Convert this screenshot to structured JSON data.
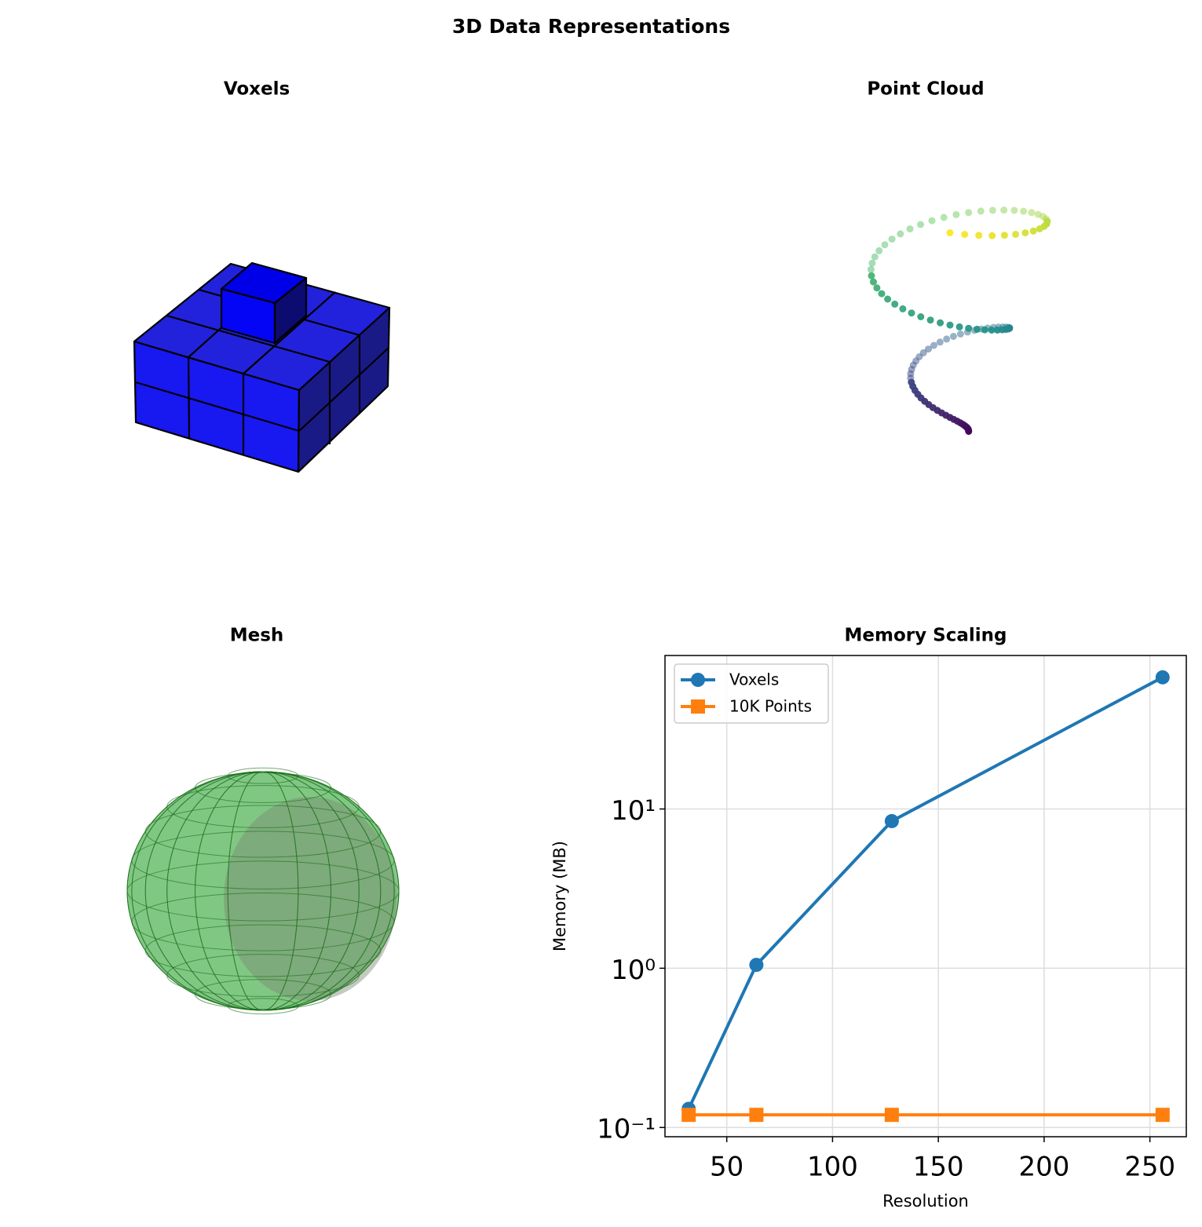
{
  "title": "3D Data Representations",
  "chart_data": [
    {
      "type": "voxels",
      "title": "Voxels"
    },
    {
      "type": "scatter3d",
      "title": "Point Cloud"
    },
    {
      "type": "mesh",
      "title": "Mesh"
    },
    {
      "type": "line",
      "title": "Memory Scaling",
      "x_label": "Resolution",
      "y_label": "Memory (MB)",
      "x": [
        32,
        64,
        128,
        256
      ],
      "series": [
        {
          "name": "Voxels",
          "color": "#1f77b4",
          "marker": "circle",
          "values": [
            0.131,
            1.05,
            8.39,
            67.1
          ]
        },
        {
          "name": "10K Points",
          "color": "#ff7f0e",
          "marker": "square",
          "values": [
            0.12,
            0.12,
            0.12,
            0.12
          ]
        }
      ],
      "xlim": [
        20.8,
        267.2
      ],
      "xticks": [
        50,
        100,
        150,
        200,
        250
      ],
      "ylim": [
        0.0875,
        92.0
      ],
      "yscale": "log",
      "yticks": [
        {
          "value": 0.1,
          "label": "10⁻¹"
        },
        {
          "value": 1,
          "label": "10⁰"
        },
        {
          "value": 10,
          "label": "10¹"
        }
      ],
      "grid": true,
      "legend": "upper left"
    }
  ]
}
